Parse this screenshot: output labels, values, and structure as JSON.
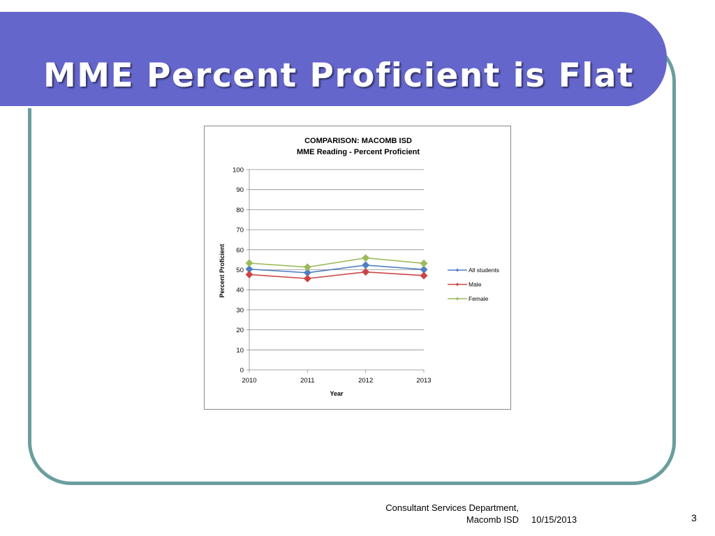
{
  "slide": {
    "title": "MME Percent Proficient is Flat",
    "footer_department": "Consultant Services Department,\nMacomb ISD",
    "footer_date": "10/15/2013",
    "page_number": "3"
  },
  "colors": {
    "banner": "#6466cc",
    "frame": "#6a9e9e",
    "all_students": "#4f7ec2",
    "male": "#cc4545",
    "female": "#9bbb59"
  },
  "chart_data": {
    "type": "line",
    "title": "COMPARISON: MACOMB ISD",
    "subtitle": "MME Reading - Percent Proficient",
    "xlabel": "Year",
    "ylabel": "Percent Proficient",
    "categories": [
      "2010",
      "2011",
      "2012",
      "2013"
    ],
    "ylim": [
      0,
      100
    ],
    "yticks": [
      0,
      10,
      20,
      30,
      40,
      50,
      60,
      70,
      80,
      90,
      100
    ],
    "grid": true,
    "legend": "right",
    "series": [
      {
        "name": "All students",
        "color": "#4f7ec2",
        "values": [
          50.3,
          48.5,
          52.3,
          50.1
        ]
      },
      {
        "name": "Male",
        "color": "#cc4545",
        "values": [
          47.6,
          45.6,
          48.9,
          47.1
        ]
      },
      {
        "name": "Female",
        "color": "#9bbb59",
        "values": [
          53.3,
          51.3,
          55.9,
          53.2
        ]
      }
    ]
  }
}
